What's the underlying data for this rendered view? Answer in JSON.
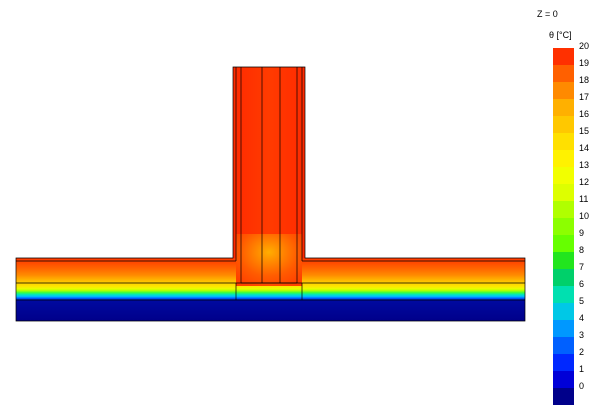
{
  "view": {
    "z_label": "Z = 0",
    "legend_title": "θ [°C]"
  },
  "legend": {
    "labels": [
      "20",
      "19",
      "18",
      "17",
      "16",
      "15",
      "14",
      "13",
      "12",
      "11",
      "10",
      "9",
      "8",
      "7",
      "6",
      "5",
      "4",
      "3",
      "2",
      "1",
      "0"
    ],
    "colors": [
      "#ff3000",
      "#ff6000",
      "#ff8a00",
      "#ffb000",
      "#ffc800",
      "#ffe000",
      "#fff200",
      "#f2ff00",
      "#ddff00",
      "#b0ff00",
      "#8cff00",
      "#66ff00",
      "#22e51e",
      "#00d06a",
      "#00e0b0",
      "#00c8e6",
      "#0098ff",
      "#0060ff",
      "#0028ff",
      "#0000d8",
      "#00008a"
    ]
  },
  "colors": {
    "wall_outer": "#ff2f00",
    "wall_inner": "#ff3a00",
    "slab_top": "#ff3a00",
    "slab_bottom": "#00008a",
    "outline": "#000000"
  }
}
